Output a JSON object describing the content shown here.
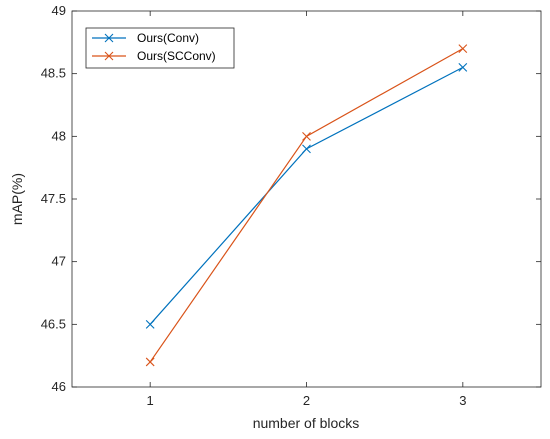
{
  "chart_data": {
    "type": "line",
    "xlabel": "number of blocks",
    "ylabel": "mAP(%)",
    "x": [
      1,
      2,
      3
    ],
    "xlim": [
      0.5,
      3.5
    ],
    "ylim": [
      46,
      49
    ],
    "xticks": [
      "1",
      "2",
      "3"
    ],
    "yticks": [
      "46",
      "46.5",
      "47",
      "47.5",
      "48",
      "48.5",
      "49"
    ],
    "legend_position": "top-left",
    "grid": false,
    "series": [
      {
        "name": "Ours(Conv)",
        "color": "#0072BD",
        "marker": "x",
        "values": [
          46.5,
          47.9,
          48.55
        ]
      },
      {
        "name": "Ours(SCConv)",
        "color": "#D95319",
        "marker": "x",
        "values": [
          46.2,
          48.0,
          48.7
        ]
      }
    ]
  }
}
